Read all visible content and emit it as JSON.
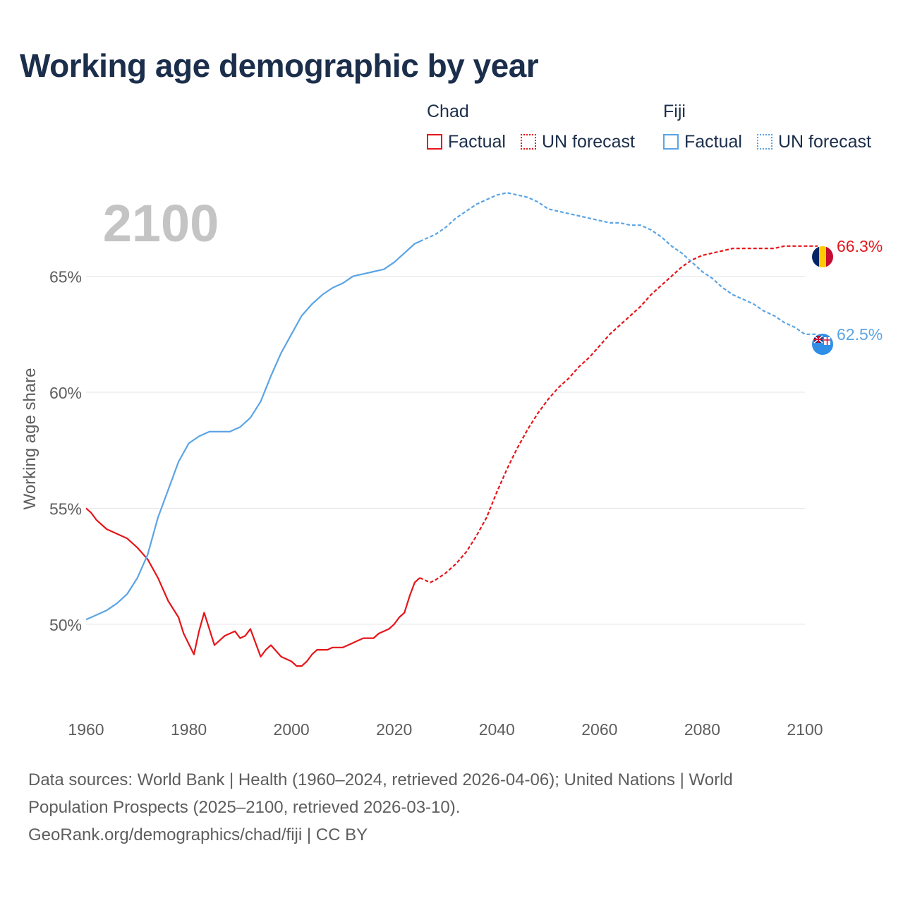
{
  "title": "Working age demographic by year",
  "legend": {
    "groups": [
      {
        "name": "Chad",
        "color": "#e5151a",
        "items": [
          {
            "label": "Factual",
            "style": "solid"
          },
          {
            "label": "UN forecast",
            "style": "dotted"
          }
        ]
      },
      {
        "name": "Fiji",
        "color": "#5ba4e5",
        "items": [
          {
            "label": "Factual",
            "style": "solid"
          },
          {
            "label": "UN forecast",
            "style": "dotted"
          }
        ]
      }
    ]
  },
  "chart_data": {
    "type": "line",
    "year_label": "2100",
    "ylabel": "Working age share",
    "xlabel": "",
    "xlim": [
      1960,
      2100
    ],
    "ylim": [
      46.5,
      69
    ],
    "x_ticks": [
      1960,
      1980,
      2000,
      2020,
      2040,
      2060,
      2080,
      2100
    ],
    "y_ticks": [
      {
        "value": 50,
        "label": "50%"
      },
      {
        "value": 55,
        "label": "55%"
      },
      {
        "value": 60,
        "label": "60%"
      },
      {
        "value": 65,
        "label": "65%"
      }
    ],
    "forecast_start": 2025,
    "series": [
      {
        "name": "Chad",
        "color": "#e5151a",
        "end_label": "66.3%",
        "flag": "chad-flag",
        "x": [
          1960,
          1961,
          1962,
          1964,
          1966,
          1968,
          1970,
          1972,
          1974,
          1976,
          1978,
          1979,
          1981,
          1982,
          1983,
          1985,
          1986,
          1987,
          1989,
          1990,
          1991,
          1992,
          1994,
          1995,
          1996,
          1998,
          2000,
          2001,
          2002,
          2003,
          2004,
          2005,
          2007,
          2008,
          2010,
          2012,
          2014,
          2016,
          2017,
          2019,
          2020,
          2021,
          2022,
          2023,
          2024,
          2025,
          2026,
          2027,
          2028,
          2030,
          2032,
          2034,
          2036,
          2038,
          2040,
          2041,
          2042,
          2044,
          2046,
          2048,
          2050,
          2052,
          2054,
          2056,
          2058,
          2060,
          2062,
          2064,
          2066,
          2068,
          2070,
          2072,
          2074,
          2076,
          2078,
          2080,
          2082,
          2084,
          2086,
          2088,
          2090,
          2092,
          2094,
          2096,
          2098,
          2100
        ],
        "y": [
          55.0,
          54.8,
          54.5,
          54.1,
          53.9,
          53.7,
          53.3,
          52.8,
          52.0,
          51.0,
          50.3,
          49.6,
          48.7,
          49.7,
          50.5,
          49.1,
          49.3,
          49.5,
          49.7,
          49.4,
          49.5,
          49.8,
          48.6,
          48.9,
          49.1,
          48.6,
          48.4,
          48.2,
          48.2,
          48.4,
          48.7,
          48.9,
          48.9,
          49.0,
          49.0,
          49.2,
          49.4,
          49.4,
          49.6,
          49.8,
          50.0,
          50.3,
          50.5,
          51.2,
          51.8,
          52.0,
          51.9,
          51.8,
          51.9,
          52.2,
          52.6,
          53.1,
          53.8,
          54.6,
          55.7,
          56.2,
          56.7,
          57.6,
          58.4,
          59.1,
          59.7,
          60.2,
          60.6,
          61.1,
          61.5,
          62.0,
          62.5,
          62.9,
          63.3,
          63.7,
          64.2,
          64.6,
          65.0,
          65.4,
          65.7,
          65.9,
          66.0,
          66.1,
          66.2,
          66.2,
          66.2,
          66.2,
          66.2,
          66.3,
          66.3,
          66.3
        ]
      },
      {
        "name": "Fiji",
        "color": "#5ba4e5",
        "end_label": "62.5%",
        "flag": "fiji-flag",
        "x": [
          1960,
          1962,
          1964,
          1966,
          1968,
          1970,
          1972,
          1974,
          1976,
          1978,
          1980,
          1982,
          1984,
          1986,
          1988,
          1990,
          1992,
          1994,
          1996,
          1998,
          2000,
          2002,
          2004,
          2006,
          2008,
          2010,
          2012,
          2014,
          2016,
          2018,
          2020,
          2022,
          2024,
          2025,
          2026,
          2028,
          2030,
          2032,
          2034,
          2036,
          2038,
          2040,
          2042,
          2044,
          2046,
          2048,
          2050,
          2052,
          2054,
          2056,
          2058,
          2060,
          2062,
          2064,
          2066,
          2068,
          2070,
          2072,
          2074,
          2076,
          2078,
          2080,
          2082,
          2084,
          2086,
          2088,
          2090,
          2092,
          2094,
          2096,
          2098,
          2100
        ],
        "y": [
          50.2,
          50.4,
          50.6,
          50.9,
          51.3,
          52.0,
          53.0,
          54.6,
          55.8,
          57.0,
          57.8,
          58.1,
          58.3,
          58.3,
          58.3,
          58.5,
          58.9,
          59.6,
          60.7,
          61.7,
          62.5,
          63.3,
          63.8,
          64.2,
          64.5,
          64.7,
          65.0,
          65.1,
          65.2,
          65.3,
          65.6,
          66.0,
          66.4,
          66.5,
          66.6,
          66.8,
          67.1,
          67.5,
          67.8,
          68.1,
          68.3,
          68.5,
          68.6,
          68.5,
          68.4,
          68.2,
          67.9,
          67.8,
          67.7,
          67.6,
          67.5,
          67.4,
          67.3,
          67.3,
          67.2,
          67.2,
          67.0,
          66.7,
          66.3,
          66.0,
          65.6,
          65.2,
          64.9,
          64.5,
          64.2,
          64.0,
          63.8,
          63.5,
          63.3,
          63.0,
          62.8,
          62.5
        ]
      }
    ]
  },
  "footer": {
    "line1": "Data sources: World Bank | Health (1960–2024, retrieved 2026-04-06); United Nations | World",
    "line2": "Population Prospects (2025–2100, retrieved 2026-03-10).",
    "line3": "GeoRank.org/demographics/chad/fiji | CC BY"
  }
}
